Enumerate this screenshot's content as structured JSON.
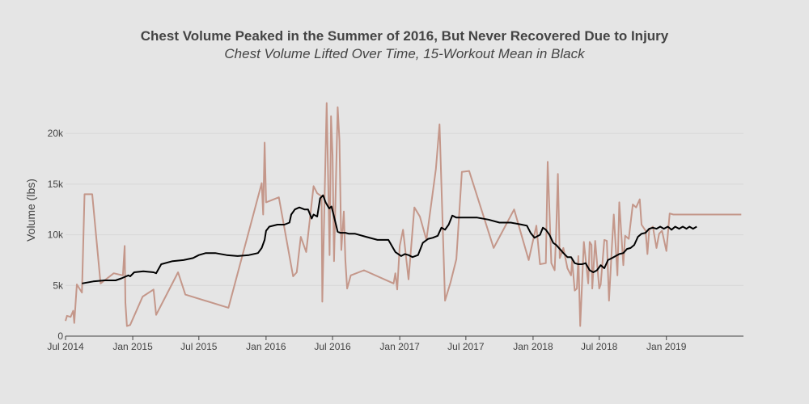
{
  "chart_data": {
    "type": "line",
    "title": "Chest Volume Peaked in the Summer of 2016, But Never Recovered Due to Injury",
    "subtitle": "Chest Volume Lifted Over Time, 15-Workout Mean in Black",
    "xlabel": "",
    "ylabel": "Volume (lbs)",
    "xlim": [
      "2014-07-01",
      "2019-07-31"
    ],
    "ylim": [
      0,
      24000
    ],
    "x_tick_labels": [
      "Jul 2014",
      "Jan 2015",
      "Jul 2015",
      "Jan 2016",
      "Jul 2016",
      "Jan 2017",
      "Jul 2017",
      "Jan 2018",
      "Jul 2018",
      "Jan 2019"
    ],
    "x_tick_dates": [
      "2014-07-01",
      "2015-01-01",
      "2015-07-01",
      "2016-01-01",
      "2016-07-01",
      "2017-01-01",
      "2017-07-01",
      "2018-01-01",
      "2018-07-01",
      "2019-01-01"
    ],
    "y_tick_labels": [
      "0",
      "5k",
      "10k",
      "15k",
      "20k"
    ],
    "y_tick_values": [
      0,
      5000,
      10000,
      15000,
      20000
    ],
    "grid": true,
    "legend": "none",
    "colors": {
      "workout": "#c4978a",
      "mean": "#000000",
      "background": "#e5e5e5",
      "grid": "#d6d6d6"
    },
    "series": [
      {
        "role": "workout",
        "x": [
          "2014-07-01",
          "2014-07-05",
          "2014-07-15",
          "2014-07-22",
          "2014-07-25",
          "2014-08-01",
          "2014-08-15",
          "2014-08-22",
          "2014-08-28",
          "2014-09-12",
          "2014-10-05",
          "2014-11-10",
          "2014-12-05",
          "2014-12-10",
          "2014-12-12",
          "2014-12-16",
          "2014-12-25",
          "2015-01-28",
          "2015-02-27",
          "2015-03-06",
          "2015-05-05",
          "2015-05-25",
          "2015-09-20",
          "2015-11-28",
          "2015-12-20",
          "2015-12-24",
          "2015-12-28",
          "2016-01-01",
          "2016-02-05",
          "2016-03-15",
          "2016-03-25",
          "2016-04-05",
          "2016-04-20",
          "2016-05-10",
          "2016-05-20",
          "2016-06-01",
          "2016-06-03",
          "2016-06-15",
          "2016-06-20",
          "2016-06-23",
          "2016-06-27",
          "2016-07-01",
          "2016-07-05",
          "2016-07-15",
          "2016-07-20",
          "2016-07-25",
          "2016-08-01",
          "2016-08-05",
          "2016-08-10",
          "2016-08-20",
          "2016-09-25",
          "2016-12-15",
          "2016-12-20",
          "2016-12-25",
          "2017-01-01",
          "2017-01-10",
          "2017-01-25",
          "2017-02-10",
          "2017-02-25",
          "2017-03-15",
          "2017-04-10",
          "2017-04-20",
          "2017-05-05",
          "2017-05-20",
          "2017-06-05",
          "2017-06-20",
          "2017-07-10",
          "2017-09-15",
          "2017-11-10",
          "2017-12-20",
          "2018-01-10",
          "2018-01-20",
          "2018-02-05",
          "2018-02-10",
          "2018-02-20",
          "2018-03-01",
          "2018-03-05",
          "2018-03-10",
          "2018-03-15",
          "2018-03-25",
          "2018-04-05",
          "2018-04-15",
          "2018-04-18",
          "2018-04-25",
          "2018-05-01",
          "2018-05-05",
          "2018-05-10",
          "2018-05-20",
          "2018-06-01",
          "2018-06-05",
          "2018-06-10",
          "2018-06-12",
          "2018-06-20",
          "2018-07-01",
          "2018-07-05",
          "2018-07-15",
          "2018-07-22",
          "2018-07-28",
          "2018-08-05",
          "2018-08-10",
          "2018-08-20",
          "2018-08-25",
          "2018-09-05",
          "2018-09-10",
          "2018-09-20",
          "2018-10-01",
          "2018-10-10",
          "2018-10-20",
          "2018-10-25",
          "2018-11-05",
          "2018-11-10",
          "2018-11-15",
          "2018-11-25",
          "2018-12-05",
          "2018-12-12",
          "2018-12-20",
          "2019-01-01",
          "2019-01-10",
          "2019-01-20",
          "2019-02-01",
          "2019-02-15",
          "2019-02-25",
          "2019-03-05",
          "2019-03-20",
          "2019-04-01",
          "2019-04-15",
          "2019-04-25",
          "2019-05-05",
          "2019-05-20",
          "2019-06-01",
          "2019-06-10",
          "2019-06-20",
          "2019-07-05",
          "2019-07-25"
        ],
        "y": [
          1500,
          2000,
          1900,
          2500,
          1300,
          5100,
          4300,
          14000,
          14000,
          14000,
          5200,
          6200,
          6000,
          8900,
          3300,
          1000,
          1100,
          3900,
          4600,
          2100,
          6300,
          4100,
          2800,
          12100,
          15100,
          12000,
          19100,
          13200,
          13700,
          5900,
          6300,
          9800,
          8300,
          14800,
          14100,
          13800,
          3400,
          23000,
          13600,
          8000,
          21700,
          17800,
          7400,
          22600,
          19300,
          8500,
          12300,
          7500,
          4700,
          6000,
          6500,
          5200,
          6200,
          4600,
          8900,
          10500,
          5600,
          12700,
          11800,
          9500,
          16500,
          20900,
          3500,
          5300,
          7600,
          16200,
          16300,
          8700,
          12500,
          7500,
          10900,
          7100,
          7200,
          17200,
          7200,
          6500,
          10000,
          16000,
          7700,
          8700,
          6700,
          6000,
          7500,
          4500,
          4700,
          7900,
          1000,
          9300,
          5200,
          9300,
          9000,
          4700,
          9400,
          4700,
          5100,
          9500,
          9400,
          3500,
          9000,
          12000,
          6000,
          13200,
          7000,
          9900,
          9600,
          13000,
          12700,
          13500,
          11000,
          10400,
          8100,
          10500,
          10800,
          8700,
          10100,
          10400,
          8400,
          12100,
          12000,
          12000,
          12000,
          12000,
          12000,
          12000,
          12000,
          12000,
          12000,
          12000,
          12000,
          12000,
          12000,
          12000,
          12000,
          12000
        ]
      },
      {
        "role": "mean",
        "x": [
          "2014-08-15",
          "2014-09-15",
          "2014-10-15",
          "2014-11-15",
          "2014-12-01",
          "2014-12-20",
          "2014-12-25",
          "2015-01-05",
          "2015-01-30",
          "2015-02-27",
          "2015-03-06",
          "2015-03-20",
          "2015-04-20",
          "2015-05-20",
          "2015-06-15",
          "2015-07-01",
          "2015-07-20",
          "2015-08-15",
          "2015-09-15",
          "2015-10-15",
          "2015-11-15",
          "2015-12-10",
          "2015-12-20",
          "2015-12-28",
          "2016-01-01",
          "2016-01-10",
          "2016-02-01",
          "2016-02-20",
          "2016-03-05",
          "2016-03-10",
          "2016-03-20",
          "2016-04-01",
          "2016-04-15",
          "2016-04-25",
          "2016-05-05",
          "2016-05-10",
          "2016-05-20",
          "2016-05-28",
          "2016-06-05",
          "2016-06-12",
          "2016-06-17",
          "2016-06-22",
          "2016-06-28",
          "2016-07-05",
          "2016-07-15",
          "2016-07-22",
          "2016-07-28",
          "2016-08-01",
          "2016-08-05",
          "2016-08-15",
          "2016-09-01",
          "2016-10-01",
          "2016-11-01",
          "2016-12-01",
          "2016-12-20",
          "2017-01-05",
          "2017-01-15",
          "2017-01-25",
          "2017-02-05",
          "2017-02-20",
          "2017-03-05",
          "2017-03-20",
          "2017-04-01",
          "2017-04-15",
          "2017-04-25",
          "2017-05-05",
          "2017-05-15",
          "2017-05-25",
          "2017-06-05",
          "2017-06-20",
          "2017-07-05",
          "2017-08-01",
          "2017-09-01",
          "2017-10-01",
          "2017-11-01",
          "2017-12-01",
          "2017-12-15",
          "2017-12-25",
          "2018-01-05",
          "2018-01-20",
          "2018-01-28",
          "2018-02-05",
          "2018-02-15",
          "2018-02-25",
          "2018-03-05",
          "2018-03-15",
          "2018-03-25",
          "2018-04-05",
          "2018-04-15",
          "2018-04-25",
          "2018-05-05",
          "2018-05-15",
          "2018-05-25",
          "2018-06-05",
          "2018-06-15",
          "2018-06-25",
          "2018-07-05",
          "2018-07-15",
          "2018-07-25",
          "2018-08-05",
          "2018-08-15",
          "2018-08-25",
          "2018-09-05",
          "2018-09-15",
          "2018-09-25",
          "2018-10-05",
          "2018-10-15",
          "2018-10-25",
          "2018-11-05",
          "2018-11-15",
          "2018-11-25",
          "2018-12-05",
          "2018-12-15",
          "2018-12-25",
          "2019-01-05",
          "2019-01-15",
          "2019-01-25",
          "2019-02-05",
          "2019-02-15",
          "2019-02-25",
          "2019-03-05",
          "2019-03-15",
          "2019-03-25"
        ],
        "y": [
          5200,
          5400,
          5500,
          5500,
          5700,
          6000,
          5900,
          6300,
          6400,
          6300,
          6200,
          7100,
          7400,
          7500,
          7700,
          8000,
          8200,
          8200,
          8000,
          7900,
          8000,
          8200,
          8700,
          9500,
          10400,
          10800,
          11000,
          11000,
          11200,
          12000,
          12500,
          12700,
          12500,
          12500,
          11600,
          12000,
          11800,
          13600,
          13900,
          13200,
          12900,
          12600,
          12800,
          11800,
          10300,
          10200,
          10200,
          10200,
          10200,
          10100,
          10100,
          9800,
          9500,
          9500,
          8300,
          7900,
          8100,
          8000,
          7800,
          8000,
          9200,
          9600,
          9700,
          9900,
          10700,
          10500,
          11000,
          11900,
          11700,
          11700,
          11700,
          11700,
          11500,
          11200,
          11200,
          11000,
          10900,
          10200,
          9700,
          10000,
          10700,
          10500,
          10000,
          9200,
          9000,
          8600,
          8200,
          7800,
          7800,
          7200,
          7100,
          7100,
          7200,
          6500,
          6300,
          6500,
          7000,
          6700,
          7500,
          7700,
          7900,
          8100,
          8200,
          8600,
          8700,
          9000,
          9800,
          10100,
          10200,
          10600,
          10700,
          10600,
          10800,
          10600,
          10800,
          10500,
          10800,
          10600,
          10800,
          10600,
          10800,
          10600,
          10800
        ]
      }
    ]
  }
}
